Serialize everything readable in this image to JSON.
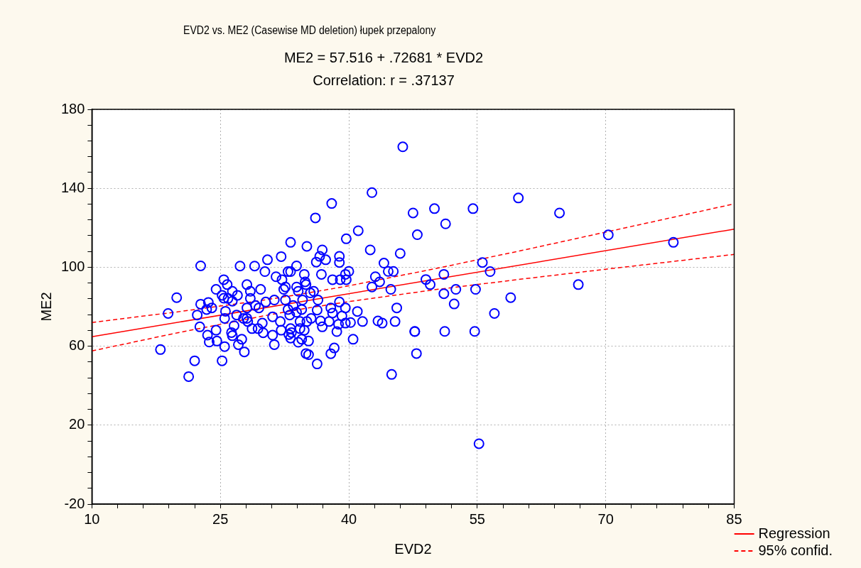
{
  "chart_data": {
    "type": "scatter",
    "title": "EVD2 vs. ME2 (Casewise MD deletion)   łupek przepalony",
    "subtitle": "ME2 = 57.516 + .72681 * EVD2",
    "annotations": [
      "Correlation: r = .37137"
    ],
    "xlabel": "EVD2",
    "ylabel": "ME2",
    "xlim": [
      10,
      85
    ],
    "xticks": [
      10,
      {
        "value": 13,
        "label": null
      },
      {
        "value": 16,
        "label": null
      },
      {
        "value": 19,
        "label": null
      },
      {
        "value": 22,
        "label": null
      },
      25,
      {
        "value": 28,
        "label": null
      },
      {
        "value": 31,
        "label": null
      },
      {
        "value": 34,
        "label": null
      },
      {
        "value": 37,
        "label": null
      },
      40,
      {
        "value": 43,
        "label": null
      },
      {
        "value": 46,
        "label": null
      },
      {
        "value": 49,
        "label": null
      },
      {
        "value": 52,
        "label": null
      },
      55,
      {
        "value": 58,
        "label": null
      },
      {
        "value": 61,
        "label": null
      },
      {
        "value": 64,
        "label": null
      },
      {
        "value": 67,
        "label": null
      },
      70,
      {
        "value": 73,
        "label": null
      },
      {
        "value": 76,
        "label": null
      },
      {
        "value": 79,
        "label": null
      },
      {
        "value": 82,
        "label": null
      },
      85
    ],
    "ylim": [
      -20,
      180
    ],
    "yticks": [
      -20,
      {
        "value": -12,
        "label": null
      },
      {
        "value": -4,
        "label": null
      },
      {
        "value": 4,
        "label": null
      },
      {
        "value": 12,
        "label": null
      },
      20,
      {
        "value": 28,
        "label": null
      },
      {
        "value": 36,
        "label": null
      },
      {
        "value": 44,
        "label": null
      },
      {
        "value": 52,
        "label": null
      },
      60,
      {
        "value": 68,
        "label": null
      },
      {
        "value": 76,
        "label": null
      },
      {
        "value": 84,
        "label": null
      },
      {
        "value": 92,
        "label": null
      },
      100,
      {
        "value": 108,
        "label": null
      },
      {
        "value": 116,
        "label": null
      },
      {
        "value": 124,
        "label": null
      },
      {
        "value": 132,
        "label": null
      },
      140,
      {
        "value": 148,
        "label": null
      },
      {
        "value": 156,
        "label": null
      },
      {
        "value": 164,
        "label": null
      },
      {
        "value": 172,
        "label": null
      },
      180
    ],
    "grid": true,
    "legend": "bottom right",
    "series": [
      {
        "type": "scatter",
        "color": "#0000ff",
        "marker": "circle",
        "x": [
          46.3,
          42.7,
          38.0,
          36.1,
          47.5,
          41.1,
          39.7,
          48.0,
          33.2,
          35.1,
          36.9,
          42.5,
          36.6,
          38.9,
          30.5,
          32.1,
          36.2,
          37.3,
          38.9,
          44.1,
          46.0,
          22.7,
          27.3,
          29.0,
          30.2,
          33.9,
          32.9,
          33.2,
          31.5,
          32.2,
          34.8,
          36.8,
          40.0,
          39.6,
          38.1,
          39.0,
          39.7,
          44.6,
          45.2,
          43.1,
          43.6,
          42.7,
          44.9,
          25.4,
          25.8,
          24.5,
          26.4,
          27.0,
          28.1,
          28.5,
          29.7,
          32.6,
          32.4,
          33.9,
          34.9,
          35.0,
          34.1,
          35.5,
          35.9,
          19.9,
          28.5,
          25.2,
          25.4,
          25.9,
          26.4,
          22.7,
          23.6,
          23.4,
          24.0,
          22.3,
          18.9,
          25.6,
          25.5,
          22.6,
          26.9,
          27.7,
          28.1,
          28.2,
          26.6,
          28.1,
          29.1,
          30.3,
          29.5,
          31.3,
          32.6,
          33.5,
          32.9,
          34.6,
          36.4,
          33.9,
          33.1,
          34.5,
          31.1,
          32.0,
          34.3,
          35.1,
          35.6,
          36.3,
          29.9,
          28.7,
          29.4,
          30.0,
          31.1,
          32.1,
          33.2,
          33.3,
          33.0,
          33.2,
          34.3,
          34.8,
          34.5,
          35.3,
          34.1,
          26.3,
          26.4,
          24.5,
          23.5,
          23.7,
          24.6,
          25.5,
          27.1,
          27.5,
          27.8,
          31.3,
          18.0,
          22.0,
          25.2,
          21.3,
          35.0,
          35.3,
          36.3,
          37.9,
          38.3,
          45.0,
          37.9,
          38.9,
          38.1,
          39.2,
          39.6,
          37.7,
          36.7,
          36.9,
          38.8,
          39.6,
          40.2,
          38.6,
          40.5,
          41.0,
          41.6,
          43.4,
          43.9,
          45.6,
          45.4,
          47.7,
          47.9,
          59.8,
          64.6,
          54.5,
          50.0,
          51.3,
          70.3,
          77.9,
          55.6,
          56.5,
          51.1,
          49.0,
          49.5,
          51.1,
          52.5,
          54.8,
          58.9,
          66.8,
          57.0,
          52.3,
          54.7,
          51.2,
          47.7,
          55.2
        ],
        "values": [
          161,
          137.8,
          132.3,
          125.0,
          127.5,
          118.5,
          114.4,
          116.5,
          112.6,
          110.6,
          108.8,
          108.8,
          105.5,
          105.5,
          103.8,
          105.4,
          102.6,
          103.8,
          102.4,
          102.1,
          107.0,
          100.7,
          100.6,
          100.6,
          97.8,
          100.7,
          97.8,
          97.8,
          95.2,
          93.7,
          96.4,
          96.4,
          97.9,
          96.4,
          93.7,
          93.7,
          93.7,
          97.9,
          97.9,
          95.2,
          92.6,
          90.0,
          88.8,
          93.7,
          91.2,
          88.8,
          87.8,
          85.8,
          91.2,
          87.8,
          88.8,
          90.0,
          88.8,
          90.0,
          92.6,
          91.2,
          87.8,
          87.0,
          87.8,
          84.6,
          84.2,
          85.8,
          84.3,
          84.2,
          82.8,
          81.3,
          82.2,
          78.6,
          79.4,
          75.8,
          76.6,
          77.7,
          74.1,
          69.8,
          75.8,
          74.1,
          74.1,
          72.5,
          70.4,
          79.4,
          80.6,
          82.4,
          79.4,
          83.4,
          83.4,
          80.6,
          78.6,
          83.4,
          83.4,
          77.2,
          75.8,
          78.6,
          74.9,
          72.5,
          72.5,
          72.5,
          74.1,
          78.3,
          71.7,
          68.9,
          68.9,
          66.8,
          65.6,
          68.1,
          68.9,
          66.9,
          65.9,
          64.1,
          68.9,
          68.1,
          63.5,
          62.6,
          62.0,
          66.9,
          65.3,
          68.1,
          65.6,
          62.1,
          62.6,
          59.8,
          60.8,
          63.5,
          57.1,
          60.8,
          58.3,
          52.6,
          52.6,
          44.6,
          56.3,
          55.7,
          51.0,
          56.2,
          59.1,
          45.7,
          79.4,
          82.4,
          76.8,
          75.3,
          79.4,
          72.5,
          72.8,
          69.8,
          71.1,
          71.7,
          72.0,
          67.4,
          63.5,
          77.6,
          72.5,
          72.8,
          71.7,
          79.4,
          72.5,
          67.4,
          56.3,
          135.1,
          127.5,
          129.7,
          129.7,
          122.0,
          116.4,
          112.6,
          102.4,
          97.8,
          96.4,
          93.8,
          91.2,
          86.6,
          88.8,
          88.8,
          84.6,
          91.2,
          76.6,
          81.4,
          67.5,
          67.5,
          67.5,
          10.6
        ]
      },
      {
        "type": "line",
        "name": "Regression",
        "color": "#ff0000",
        "marker": "none",
        "line_style": "solid",
        "x": [
          10,
          85
        ],
        "values": [
          64.8,
          119.3
        ]
      },
      {
        "type": "line",
        "name": "95% confid.",
        "color": "#ff0000",
        "marker": "none",
        "line_style": "dashed",
        "x": [
          10,
          20,
          30,
          35,
          40,
          50,
          60,
          70,
          85
        ],
        "values": [
          72.0,
          77.4,
          83.3,
          86.8,
          90.6,
          99.2,
          108.3,
          117.8,
          132.1
        ]
      },
      {
        "type": "line",
        "color": "#ff0000",
        "marker": "none",
        "line_style": "dashed",
        "x": [
          10,
          20,
          30,
          35,
          40,
          50,
          60,
          70,
          85
        ],
        "values": [
          57.6,
          66.8,
          75.3,
          79.2,
          82.6,
          88.6,
          93.9,
          99.0,
          106.5
        ]
      }
    ]
  }
}
